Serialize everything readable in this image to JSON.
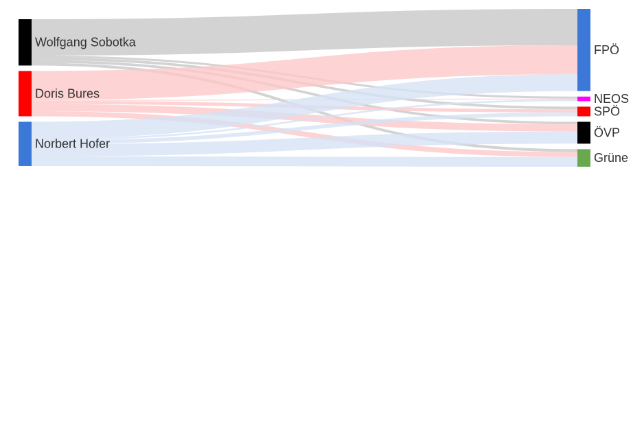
{
  "chart_data": {
    "type": "sankey",
    "sources": [
      {
        "id": "sobotka",
        "label": "Wolfgang Sobotka",
        "color": "#000000",
        "link_color": "#c8c8c8"
      },
      {
        "id": "bures",
        "label": "Doris Bures",
        "color": "#ff0000",
        "link_color": "#fcc8c8"
      },
      {
        "id": "hofer",
        "label": "Norbert Hofer",
        "color": "#3c78d8",
        "link_color": "#d6e2f5"
      }
    ],
    "targets": [
      {
        "id": "fpo",
        "label": "FPÖ",
        "color": "#3c78d8"
      },
      {
        "id": "neos",
        "label": "NEOS",
        "color": "#ff00ff"
      },
      {
        "id": "spo",
        "label": "SPÖ",
        "color": "#ff0000"
      },
      {
        "id": "ovp",
        "label": "ÖVP",
        "color": "#000000"
      },
      {
        "id": "grune",
        "label": "Grüne",
        "color": "#6aa84f"
      }
    ],
    "links": [
      {
        "source": "sobotka",
        "target": "fpo",
        "value": 143
      },
      {
        "source": "sobotka",
        "target": "neos",
        "value": 8
      },
      {
        "source": "sobotka",
        "target": "spo",
        "value": 10
      },
      {
        "source": "sobotka",
        "target": "ovp",
        "value": 10
      },
      {
        "source": "sobotka",
        "target": "grune",
        "value": 11
      },
      {
        "source": "bures",
        "target": "fpo",
        "value": 114
      },
      {
        "source": "bures",
        "target": "neos",
        "value": 3
      },
      {
        "source": "bures",
        "target": "spo",
        "value": 13
      },
      {
        "source": "bures",
        "target": "ovp",
        "value": 28
      },
      {
        "source": "bures",
        "target": "grune",
        "value": 20
      },
      {
        "source": "hofer",
        "target": "fpo",
        "value": 66
      },
      {
        "source": "hofer",
        "target": "neos",
        "value": 7
      },
      {
        "source": "hofer",
        "target": "spo",
        "value": 15
      },
      {
        "source": "hofer",
        "target": "ovp",
        "value": 48
      },
      {
        "source": "hofer",
        "target": "grune",
        "value": 38
      }
    ]
  }
}
